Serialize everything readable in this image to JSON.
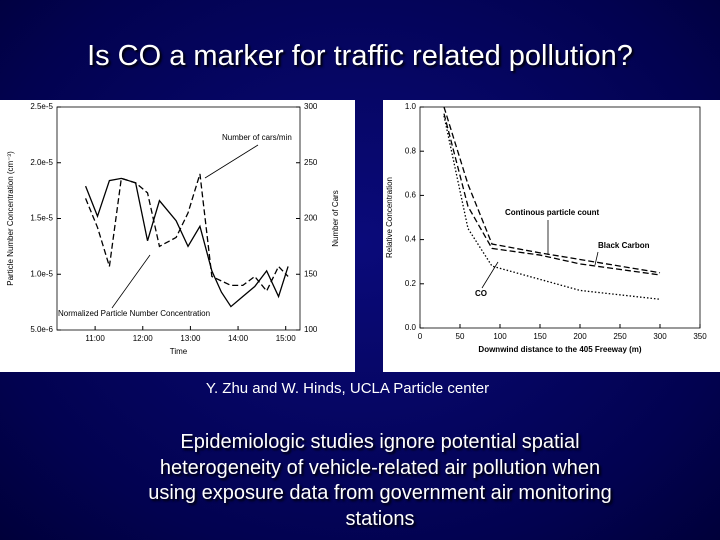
{
  "title": "Is CO a marker for traffic related pollution?",
  "credit": "Y. Zhu and W. Hinds, UCLA Particle center",
  "body": [
    "Epidemiologic studies ignore potential spatial",
    "heterogeneity of vehicle-related air pollution when",
    "using exposure data from government air monitoring",
    "stations"
  ],
  "chart_data": [
    {
      "type": "line",
      "x_label": "Time",
      "y_label": "Particle Number Concentration (cm⁻³)",
      "y2_label": "Number of Cars",
      "x": [
        10.8,
        11.05,
        11.3,
        11.55,
        11.85,
        12.1,
        12.35,
        12.7,
        12.95,
        13.2,
        13.45,
        13.65,
        13.85,
        14.1,
        14.35,
        14.6,
        14.85,
        15.05
      ],
      "xlim": [
        10.2,
        15.3
      ],
      "xticks": [
        {
          "value": 11,
          "label": "11:00"
        },
        {
          "value": 12,
          "label": "12:00"
        },
        {
          "value": 13,
          "label": "13:00"
        },
        {
          "value": 14,
          "label": "14:00"
        },
        {
          "value": 15,
          "label": "15:00"
        }
      ],
      "ylim": [
        5e-06,
        2.5e-05
      ],
      "yticks": [
        {
          "value": 5e-06,
          "label": "5.0e-6"
        },
        {
          "value": 1e-05,
          "label": "1.0e-5"
        },
        {
          "value": 1.5e-05,
          "label": "1.5e-5"
        },
        {
          "value": 2e-05,
          "label": "2.0e-5"
        },
        {
          "value": 2.5e-05,
          "label": "2.5e-5"
        }
      ],
      "y2lim": [
        100,
        300
      ],
      "y2ticks": [
        100,
        150,
        200,
        250,
        300
      ],
      "annotations": [
        "Number of cars/min",
        "Normalized Particle Number Concentration"
      ],
      "series": [
        {
          "name": "Normalized Particle Number Concentration",
          "color": "#000000",
          "style": "solid",
          "values": [
            1.79e-05,
            1.52e-05,
            1.84e-05,
            1.86e-05,
            1.82e-05,
            1.3e-05,
            1.66e-05,
            1.48e-05,
            1.25e-05,
            1.43e-05,
            1.03e-05,
            8.4e-06,
            7.1e-06,
            8e-06,
            8.9e-06,
            1.03e-05,
            8e-06,
            1.07e-05
          ]
        },
        {
          "name": "Number of cars/min",
          "color": "#000000",
          "style": "dashed",
          "axis": "y2",
          "values": [
            218,
            192,
            157,
            236,
            232,
            223,
            175,
            183,
            205,
            240,
            148,
            144,
            140,
            140,
            148,
            135,
            157,
            148
          ]
        }
      ]
    },
    {
      "type": "line",
      "x_label": "Downwind distance to the 405 Freeway (m)",
      "y_label": "Relative Concentration",
      "x": [
        30,
        60,
        90,
        150,
        200,
        300
      ],
      "xlim": [
        0,
        350
      ],
      "xticks": [
        0,
        50,
        100,
        150,
        200,
        250,
        300,
        350
      ],
      "ylim": [
        0,
        1
      ],
      "yticks": [
        {
          "value": 0,
          "label": "0.0"
        },
        {
          "value": 0.2,
          "label": "0.2"
        },
        {
          "value": 0.4,
          "label": "0.4"
        },
        {
          "value": 0.6,
          "label": "0.6"
        },
        {
          "value": 0.8,
          "label": "0.8"
        },
        {
          "value": 1,
          "label": "1.0"
        }
      ],
      "annotations": [
        "Continous particle count",
        "Black Carbon",
        "CO"
      ],
      "series": [
        {
          "name": "Continous particle count",
          "color": "#000000",
          "style": "dashed",
          "values": [
            1.0,
            0.65,
            0.38,
            0.34,
            0.31,
            0.25
          ]
        },
        {
          "name": "Black Carbon",
          "color": "#000000",
          "style": "dashed",
          "values": [
            0.97,
            0.55,
            0.36,
            0.33,
            0.29,
            0.24
          ]
        },
        {
          "name": "CO",
          "color": "#000000",
          "style": "dotted",
          "values": [
            0.96,
            0.45,
            0.28,
            0.22,
            0.17,
            0.13
          ]
        }
      ]
    }
  ]
}
